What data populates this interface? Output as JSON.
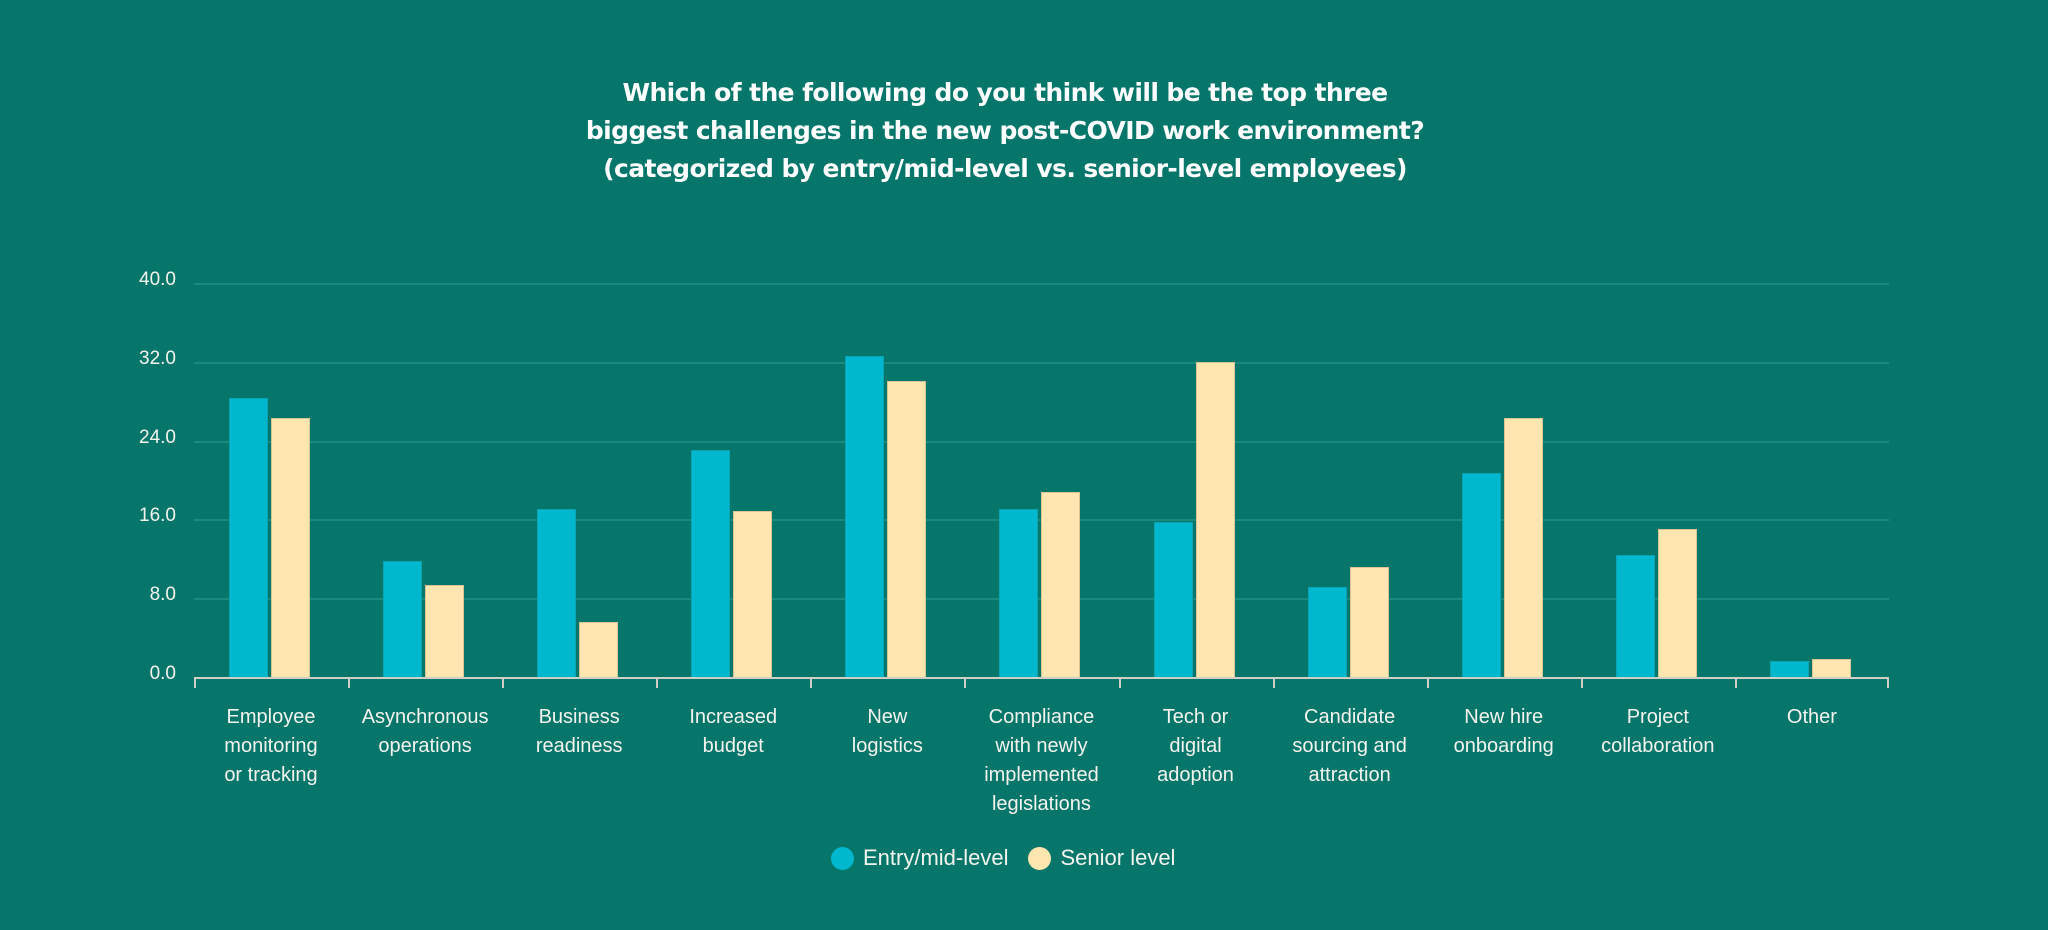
{
  "title": {
    "lines": [
      "Which of the following do you think will be the top three",
      "biggest challenges in the new post-COVID work environment?",
      "(categorized by entry/mid-level vs. senior-level employees)"
    ]
  },
  "colors": {
    "background": "#06756A",
    "entry": "#00B8CE",
    "senior": "#FFE5B0",
    "gridline": "#1A8A7D",
    "axis": "#CFCFC6"
  },
  "y_axis": {
    "ticks": [
      "0.0",
      "8.0",
      "16.0",
      "24.0",
      "32.0",
      "40.0"
    ]
  },
  "legend": {
    "entry_label": "Entry/mid-level",
    "senior_label": "Senior level"
  },
  "categories": [
    {
      "lines": [
        "Employee",
        "monitoring",
        "or tracking"
      ]
    },
    {
      "lines": [
        "Asynchronous",
        "operations"
      ]
    },
    {
      "lines": [
        "Business",
        "readiness"
      ]
    },
    {
      "lines": [
        "Increased",
        "budget"
      ]
    },
    {
      "lines": [
        "New",
        "logistics"
      ]
    },
    {
      "lines": [
        "Compliance",
        "with newly",
        "implemented",
        "legislations"
      ]
    },
    {
      "lines": [
        "Tech or",
        "digital",
        "adoption"
      ]
    },
    {
      "lines": [
        "Candidate",
        "sourcing and",
        "attraction"
      ]
    },
    {
      "lines": [
        "New hire",
        "onboarding"
      ]
    },
    {
      "lines": [
        "Project",
        "collaboration"
      ]
    },
    {
      "lines": [
        "Other"
      ]
    }
  ],
  "chart_data": {
    "type": "bar",
    "title": "Which of the following do you think will be the top three biggest challenges in the new post-COVID work environment? (categorized by entry/mid-level vs. senior-level employees)",
    "categories": [
      "Employee monitoring or tracking",
      "Asynchronous operations",
      "Business readiness",
      "Increased budget",
      "New logistics",
      "Compliance with newly implemented legislations",
      "Tech or digital adoption",
      "Candidate sourcing and attraction",
      "New hire onboarding",
      "Project collaboration",
      "Other"
    ],
    "series": [
      {
        "name": "Entry/mid-level",
        "color": "#00B8CE",
        "values": [
          28.4,
          11.9,
          17.2,
          23.1,
          32.7,
          17.2,
          15.8,
          9.2,
          20.8,
          12.5,
          1.7
        ]
      },
      {
        "name": "Senior level",
        "color": "#FFE5B0",
        "values": [
          26.4,
          9.4,
          5.7,
          17.0,
          30.2,
          18.9,
          32.1,
          11.3,
          26.4,
          15.1,
          1.9
        ]
      }
    ],
    "xlabel": "",
    "ylabel": "",
    "ylim": [
      0,
      40
    ],
    "yticks": [
      0,
      8,
      16,
      24,
      32,
      40
    ],
    "grid": true,
    "legend_position": "bottom"
  }
}
